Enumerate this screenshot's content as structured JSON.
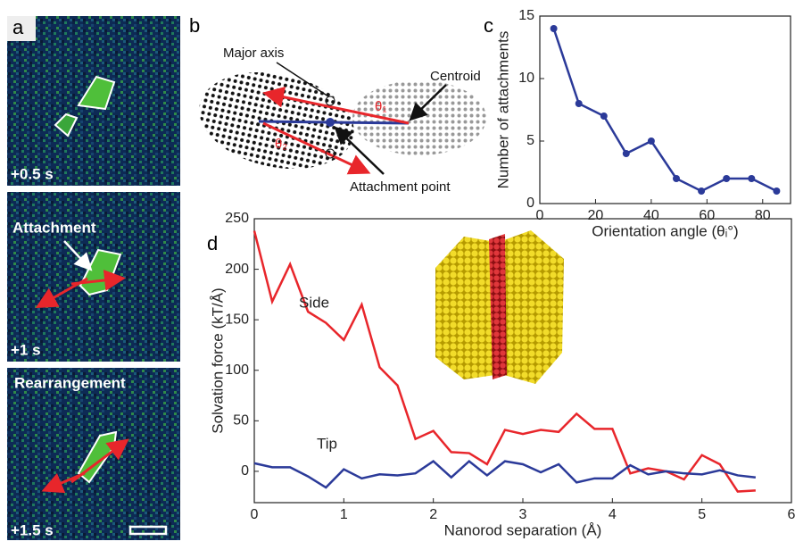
{
  "panel_labels": [
    "a",
    "b",
    "c",
    "d"
  ],
  "panel_a": {
    "frames": [
      {
        "time": "+0.5 s"
      },
      {
        "label": "Attachment",
        "time": "+1 s"
      },
      {
        "label": "Rearrangement",
        "time": "+1.5 s"
      }
    ]
  },
  "panel_b": {
    "labels": [
      "Major axis",
      "Centroid",
      "Attachment point"
    ],
    "angles": [
      "θ₁",
      "θ₂"
    ]
  },
  "chart_data": [
    {
      "type": "line",
      "xlabel": "Orientation angle (θᵢ°)",
      "ylabel": "Number of attachments",
      "x": [
        5,
        14,
        23,
        31,
        40,
        49,
        58,
        67,
        76,
        85
      ],
      "series": [
        {
          "color": "#2b3a99",
          "values": [
            14,
            8,
            7,
            4,
            5,
            2,
            1,
            2,
            2,
            1
          ]
        }
      ],
      "xlim": [
        0,
        90
      ],
      "xticks": [
        0,
        20,
        40,
        60,
        80
      ],
      "ylim": [
        0,
        15
      ],
      "yticks": [
        0,
        5,
        10,
        15
      ],
      "markers": true
    },
    {
      "type": "line",
      "xlabel": "Nanorod separation (Å)",
      "ylabel": "Solvation force (kT/Å)",
      "x": [
        0,
        0.2,
        0.4,
        0.6,
        0.8,
        1.0,
        1.2,
        1.4,
        1.6,
        1.8,
        2.0,
        2.2,
        2.4,
        2.6,
        2.8,
        3.0,
        3.2,
        3.4,
        3.6,
        3.8,
        4.0,
        4.2,
        4.4,
        4.6,
        4.8,
        5.0,
        5.2,
        5.4,
        5.6
      ],
      "series": [
        {
          "name": "Side",
          "color": "#e8262b",
          "values": [
            238,
            168,
            205,
            158,
            147,
            130,
            165,
            103,
            85,
            32,
            40,
            19,
            18,
            7,
            41,
            37,
            41,
            39,
            57,
            42,
            42,
            -2,
            3,
            0,
            -8,
            16,
            7,
            -20,
            -19
          ]
        },
        {
          "name": "Tip",
          "color": "#2b3a99",
          "values": [
            8,
            4,
            4,
            -5,
            -16,
            2,
            -7,
            -3,
            -4,
            -2,
            10,
            -6,
            10,
            -4,
            10,
            7,
            -1,
            7,
            -11,
            -7,
            -7,
            6,
            -3,
            0,
            -2,
            -3,
            1,
            -4,
            -6
          ]
        }
      ],
      "xlim": [
        0,
        6
      ],
      "xticks": [
        0,
        1,
        2,
        3,
        4,
        5,
        6
      ],
      "ylim": [
        -31,
        250
      ],
      "yticks": [
        0,
        50,
        100,
        150,
        200,
        250
      ],
      "markers": false
    }
  ]
}
